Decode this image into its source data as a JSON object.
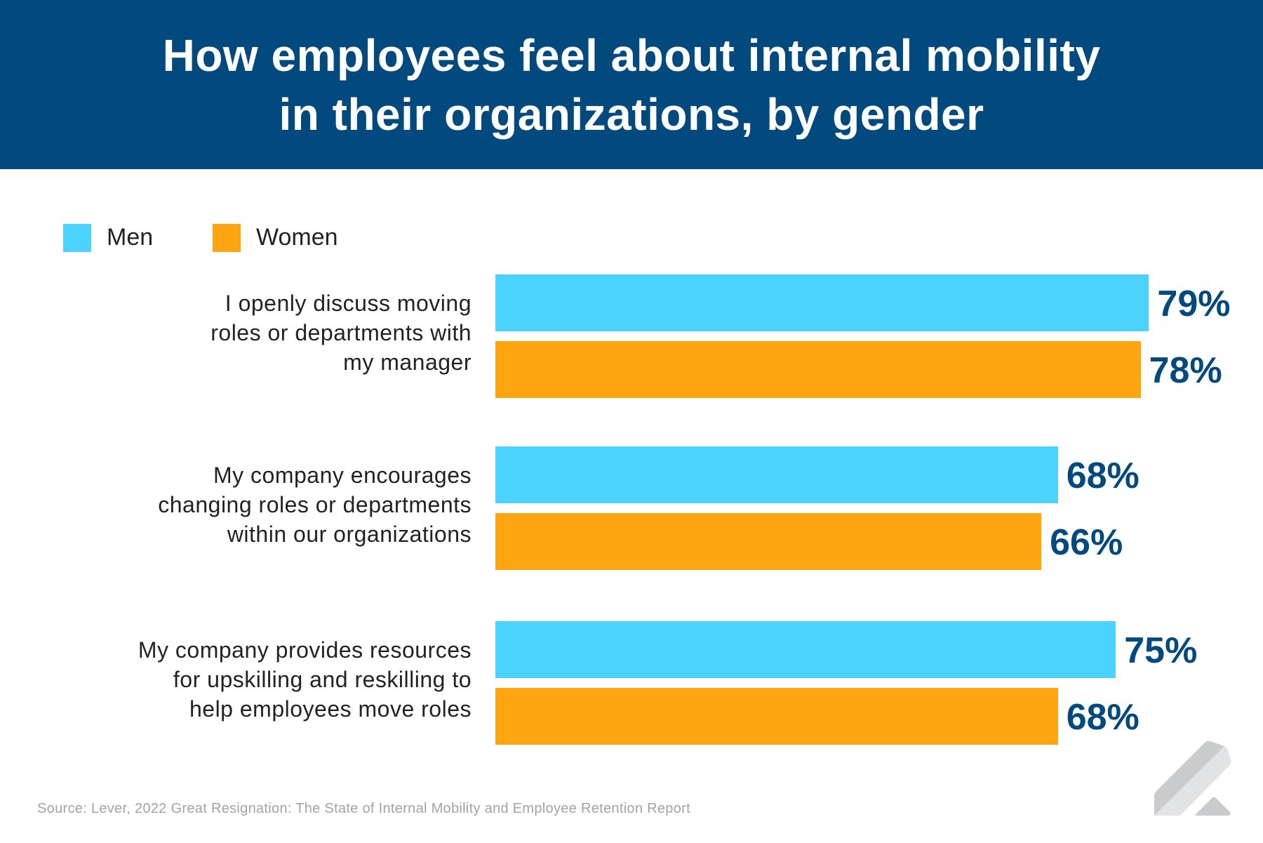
{
  "header": {
    "title_line1": "How employees feel about internal mobility",
    "title_line2": "in their organizations, by gender"
  },
  "colors": {
    "header_bg": "#02497e",
    "men": "#4bd3fe",
    "women": "#fea511",
    "value_text": "#02497e"
  },
  "chart_data": {
    "type": "bar",
    "orientation": "horizontal",
    "title": "How employees feel about internal mobility in their organizations, by gender",
    "categories": [
      "I openly discuss moving roles or departments with my manager",
      "My company encourages changing roles or departments within our organizations",
      "My company provides resources for upskilling and reskilling to help employees move roles"
    ],
    "category_lines": [
      [
        "I openly discuss moving",
        "roles or departments with",
        "my manager"
      ],
      [
        "My company encourages",
        "changing roles or departments",
        "within our organizations"
      ],
      [
        "My company provides resources",
        "for upskilling and reskilling to",
        "help employees move roles"
      ]
    ],
    "series": [
      {
        "name": "Men",
        "values": [
          79,
          68,
          75
        ],
        "labels": [
          "79%",
          "68%",
          "75%"
        ]
      },
      {
        "name": "Women",
        "values": [
          78,
          66,
          68
        ],
        "labels": [
          "78%",
          "66%",
          "68%"
        ]
      }
    ],
    "unit": "%",
    "xlim": [
      0,
      100
    ],
    "grid": false,
    "legend": "top-left"
  },
  "source": "Source: Lever, 2022 Great Resignation: The State of Internal Mobility and Employee Retention Report",
  "logo": {
    "icon": "lever-logo-icon"
  }
}
